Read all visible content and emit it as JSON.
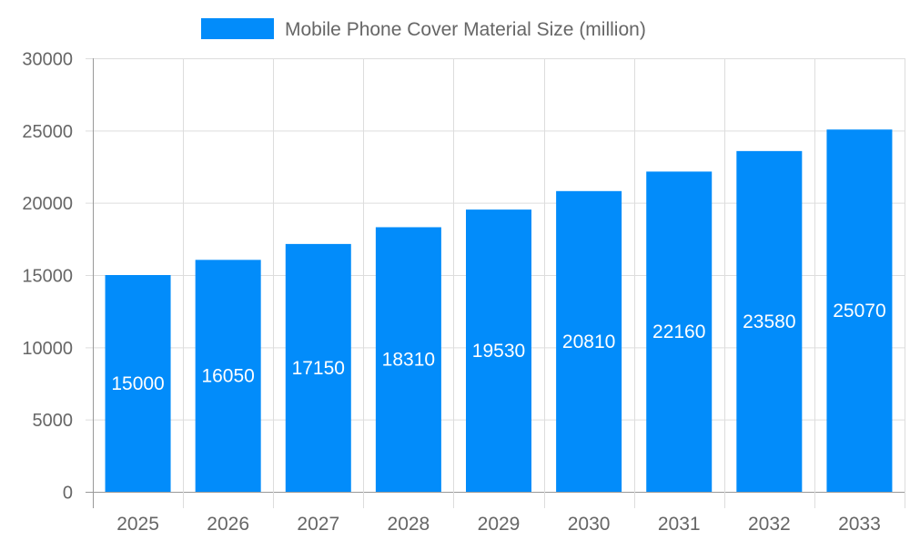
{
  "chart_data": {
    "type": "bar",
    "categories": [
      "2025",
      "2026",
      "2027",
      "2028",
      "2029",
      "2030",
      "2031",
      "2032",
      "2033"
    ],
    "series": [
      {
        "name": "Mobile Phone Cover Material Size (million)",
        "values": [
          15000,
          16050,
          17150,
          18310,
          19530,
          20810,
          22160,
          23580,
          25070
        ]
      }
    ],
    "ylim": [
      0,
      30000
    ],
    "yticks": [
      "0",
      "5000",
      "10000",
      "15000",
      "20000",
      "25000",
      "30000"
    ],
    "grid": true,
    "legend": "top",
    "bar_color": "#028cfa",
    "data_labels": true
  }
}
